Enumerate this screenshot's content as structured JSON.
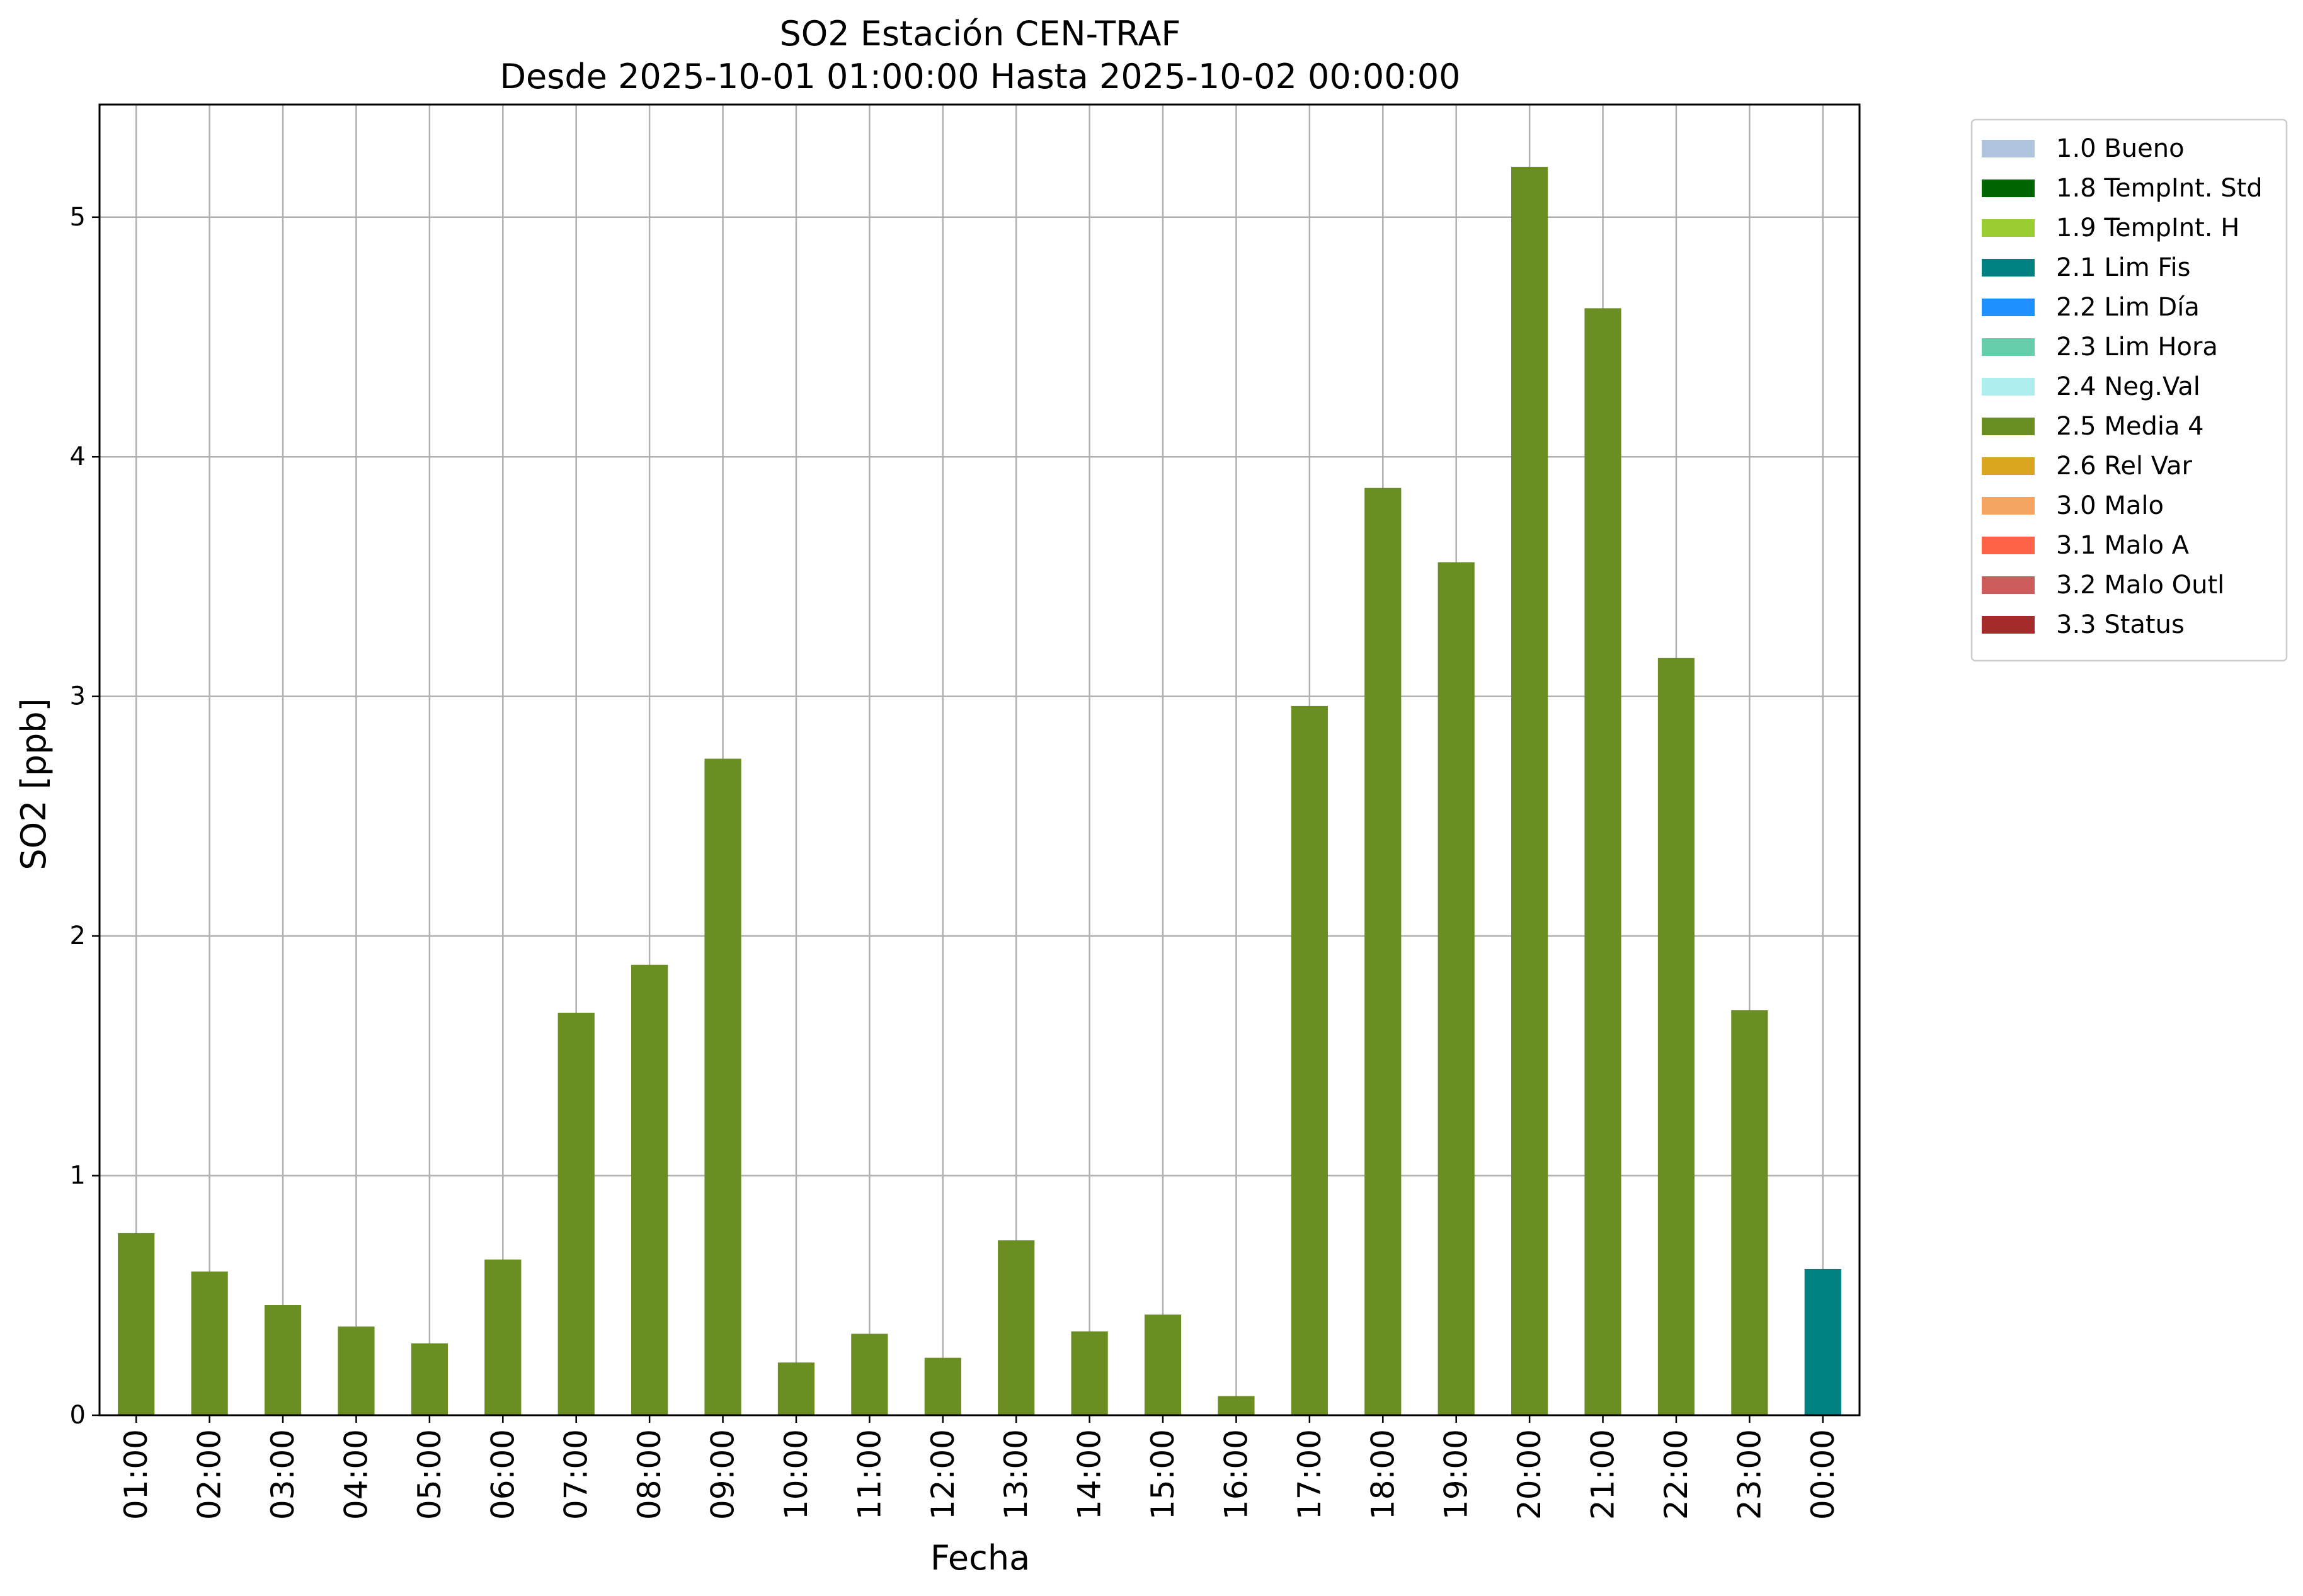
{
  "chart_data": {
    "type": "bar",
    "title": "SO2 Estación CEN-TRAF",
    "subtitle": "Desde 2025-10-01 01:00:00 Hasta 2025-10-02 00:00:00",
    "xlabel": "Fecha",
    "ylabel": "SO2 [ppb]",
    "ylim": [
      0,
      5.47
    ],
    "yticks": [
      "0",
      "1",
      "2",
      "3",
      "4",
      "5"
    ],
    "grid": true,
    "legend_position": "outside-top-right",
    "categories": [
      "01:00",
      "02:00",
      "03:00",
      "04:00",
      "05:00",
      "06:00",
      "07:00",
      "08:00",
      "09:00",
      "10:00",
      "11:00",
      "12:00",
      "13:00",
      "14:00",
      "15:00",
      "16:00",
      "17:00",
      "18:00",
      "19:00",
      "20:00",
      "21:00",
      "22:00",
      "23:00",
      "00:00"
    ],
    "values": [
      0.76,
      0.6,
      0.46,
      0.37,
      0.3,
      0.65,
      1.68,
      1.88,
      2.74,
      0.22,
      0.34,
      0.24,
      0.73,
      0.35,
      0.42,
      0.08,
      2.96,
      3.87,
      3.56,
      5.21,
      4.62,
      3.16,
      1.69,
      0.61
    ],
    "bar_flags": [
      "2.5 Media 4",
      "2.5 Media 4",
      "2.5 Media 4",
      "2.5 Media 4",
      "2.5 Media 4",
      "2.5 Media 4",
      "2.5 Media 4",
      "2.5 Media 4",
      "2.5 Media 4",
      "2.5 Media 4",
      "2.5 Media 4",
      "2.5 Media 4",
      "2.5 Media 4",
      "2.5 Media 4",
      "2.5 Media 4",
      "2.5 Media 4",
      "2.5 Media 4",
      "2.5 Media 4",
      "2.5 Media 4",
      "2.5 Media 4",
      "2.5 Media 4",
      "2.5 Media 4",
      "2.5 Media 4",
      "2.1 Lim Fis"
    ],
    "legend": [
      {
        "name": "1.0 Bueno",
        "color": "#b0c4de"
      },
      {
        "name": "1.8 TempInt. Std",
        "color": "#006400"
      },
      {
        "name": "1.9 TempInt. H",
        "color": "#9acd32"
      },
      {
        "name": "2.1 Lim Fis",
        "color": "#008080"
      },
      {
        "name": "2.2 Lim Día",
        "color": "#1e90ff"
      },
      {
        "name": "2.3 Lim Hora",
        "color": "#66cdaa"
      },
      {
        "name": "2.4 Neg.Val",
        "color": "#afeeee"
      },
      {
        "name": "2.5 Media 4",
        "color": "#6b8e23"
      },
      {
        "name": "2.6 Rel Var",
        "color": "#daa520"
      },
      {
        "name": "3.0 Malo",
        "color": "#f4a460"
      },
      {
        "name": "3.1 Malo A",
        "color": "#ff6347"
      },
      {
        "name": "3.2 Malo Outl",
        "color": "#cd5c5c"
      },
      {
        "name": "3.3 Status",
        "color": "#a52a2a"
      }
    ]
  }
}
